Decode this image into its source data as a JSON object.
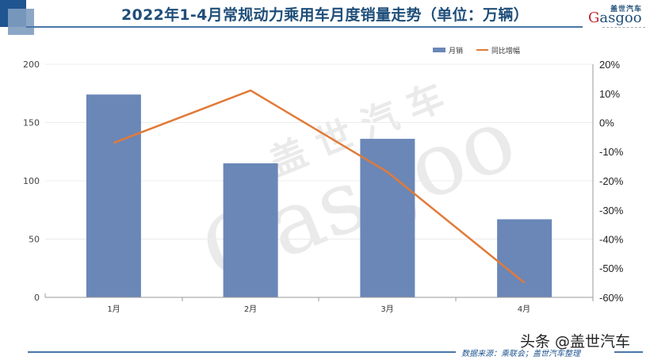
{
  "header": {
    "title": "2022年1-4月常规动力乘用车月度销量走势（单位：万辆）",
    "logo_cn": "盖世汽车",
    "logo_en_g": "G",
    "logo_en_rest": "asgoo"
  },
  "legend": {
    "bar_label": "月销",
    "line_label": "同比增幅"
  },
  "axes": {
    "left_ticks": [
      "0",
      "50",
      "100",
      "150",
      "200"
    ],
    "right_ticks": [
      "20%",
      "10%",
      "0%",
      "-10%",
      "-20%",
      "-30%",
      "-40%",
      "-50%",
      "-60%"
    ],
    "x_labels": [
      "1月",
      "2月",
      "3月",
      "4月"
    ]
  },
  "watermark": {
    "cn": "盖 世 汽 车",
    "en": "Gasgoo"
  },
  "footer": {
    "source": "数据来源：乘联会；盖世汽车整理",
    "platform_watermark": "头条 @盖世汽车"
  },
  "colors": {
    "bar": "#6a87b8",
    "line": "#e07b39",
    "title": "#1f4e79"
  },
  "chart_data": {
    "type": "bar",
    "title": "2022年1-4月常规动力乘用车月度销量走势（单位：万辆）",
    "categories": [
      "1月",
      "2月",
      "3月",
      "4月"
    ],
    "series": [
      {
        "name": "月销",
        "type": "bar",
        "axis": "left",
        "values": [
          174,
          115,
          136,
          67
        ]
      },
      {
        "name": "同比增幅",
        "type": "line",
        "axis": "right",
        "values": [
          -7,
          11,
          -17,
          -55
        ],
        "unit": "%"
      }
    ],
    "xlabel": "",
    "ylabel": "万辆",
    "ylim": [
      0,
      200
    ],
    "y2lim": [
      -60,
      20
    ],
    "grid": true,
    "legend_position": "top-right"
  }
}
